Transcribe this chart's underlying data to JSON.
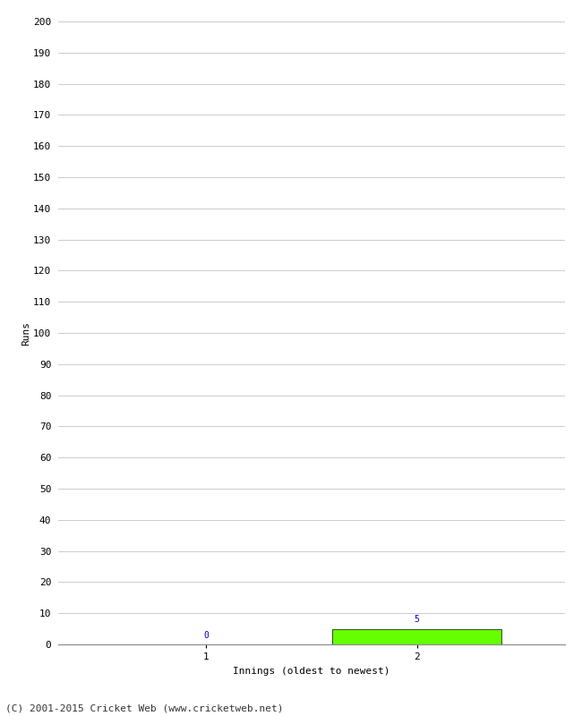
{
  "innings": [
    1,
    2
  ],
  "runs": [
    0,
    5
  ],
  "bar_color": "#66ff00",
  "bar_edgecolor": "#000000",
  "ylabel": "Runs",
  "xlabel": "Innings (oldest to newest)",
  "ylim": [
    0,
    200
  ],
  "yticks": [
    0,
    10,
    20,
    30,
    40,
    50,
    60,
    70,
    80,
    90,
    100,
    110,
    120,
    130,
    140,
    150,
    160,
    170,
    180,
    190,
    200
  ],
  "xtick_labels": [
    "1",
    "2"
  ],
  "value_label_color": "#0000cc",
  "value_fontsize": 7,
  "axis_fontsize": 8,
  "tick_fontsize": 8,
  "footer": "(C) 2001-2015 Cricket Web (www.cricketweb.net)",
  "footer_fontsize": 8,
  "background_color": "#ffffff",
  "grid_color": "#cccccc",
  "bar_width": 0.8,
  "xlim": [
    0.3,
    2.7
  ]
}
